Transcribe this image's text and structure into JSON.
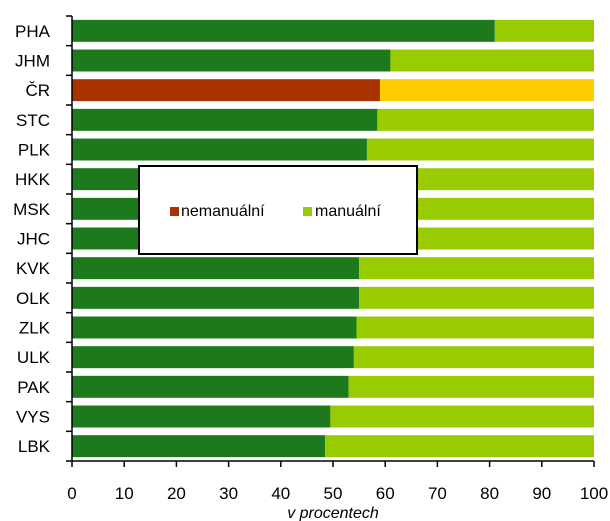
{
  "chart_data": {
    "type": "bar",
    "orientation": "horizontal",
    "stacked": true,
    "categories": [
      "PHA",
      "JHM",
      "ČR",
      "STC",
      "PLK",
      "HKK",
      "MSK",
      "JHC",
      "KVK",
      "OLK",
      "ZLK",
      "ULK",
      "PAK",
      "VYS",
      "LBK"
    ],
    "series": [
      {
        "name": "nemanuální",
        "color": "#1c7a1c",
        "values": [
          81,
          61,
          59,
          58.5,
          56.5,
          55.5,
          55.5,
          55.5,
          55,
          55,
          54.5,
          54,
          53,
          49.5,
          48.5
        ]
      },
      {
        "name": "manuální",
        "color": "#99cc00",
        "values": [
          19,
          39,
          41,
          41.5,
          43.5,
          44.5,
          44.5,
          44.5,
          45,
          45,
          45.5,
          46,
          47,
          50.5,
          51.5
        ]
      }
    ],
    "highlight": {
      "category": "ČR",
      "colors": [
        "#a83200",
        "#ffcc00"
      ]
    },
    "legend_swatch_colors": [
      "#a83200",
      "#99cc00"
    ],
    "xlabel": "v procentech",
    "xlim": [
      0,
      100
    ],
    "xticks": [
      "0",
      "10",
      "20",
      "30",
      "40",
      "50",
      "60",
      "70",
      "80",
      "90",
      "100"
    ],
    "grid": false,
    "legend_placement": "center"
  }
}
